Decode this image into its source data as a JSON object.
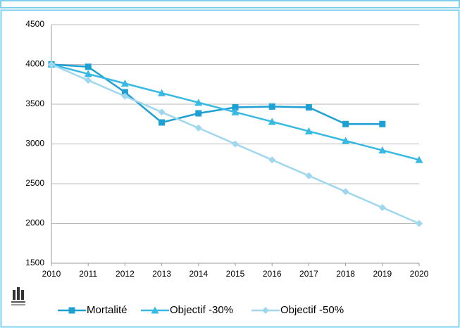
{
  "chart_data": {
    "type": "line",
    "x": [
      2010,
      2011,
      2012,
      2013,
      2014,
      2015,
      2016,
      2017,
      2018,
      2019,
      2020
    ],
    "series": [
      {
        "name": "Mortalité",
        "color": "#1ea0d2",
        "marker": "square",
        "values": [
          4000,
          3970,
          3650,
          3270,
          3385,
          3460,
          3470,
          3460,
          3250,
          3250,
          null
        ]
      },
      {
        "name": "Objectif -30%",
        "color": "#36b9e2",
        "marker": "triangle",
        "values": [
          4000,
          3880,
          3760,
          3640,
          3520,
          3400,
          3280,
          3160,
          3040,
          2920,
          2800
        ]
      },
      {
        "name": "Objectif -50%",
        "color": "#9fd7ef",
        "marker": "diamond",
        "values": [
          4000,
          3800,
          3600,
          3400,
          3200,
          3000,
          2800,
          2600,
          2400,
          2200,
          2000
        ]
      }
    ],
    "xlim": [
      2010,
      2020
    ],
    "xticks": [
      2010,
      2011,
      2012,
      2013,
      2014,
      2015,
      2016,
      2017,
      2018,
      2019,
      2020
    ],
    "ylim": [
      1500,
      4500
    ],
    "yticks": [
      1500,
      2000,
      2500,
      3000,
      3500,
      4000,
      4500
    ],
    "grid": true,
    "legend": "bottom"
  }
}
